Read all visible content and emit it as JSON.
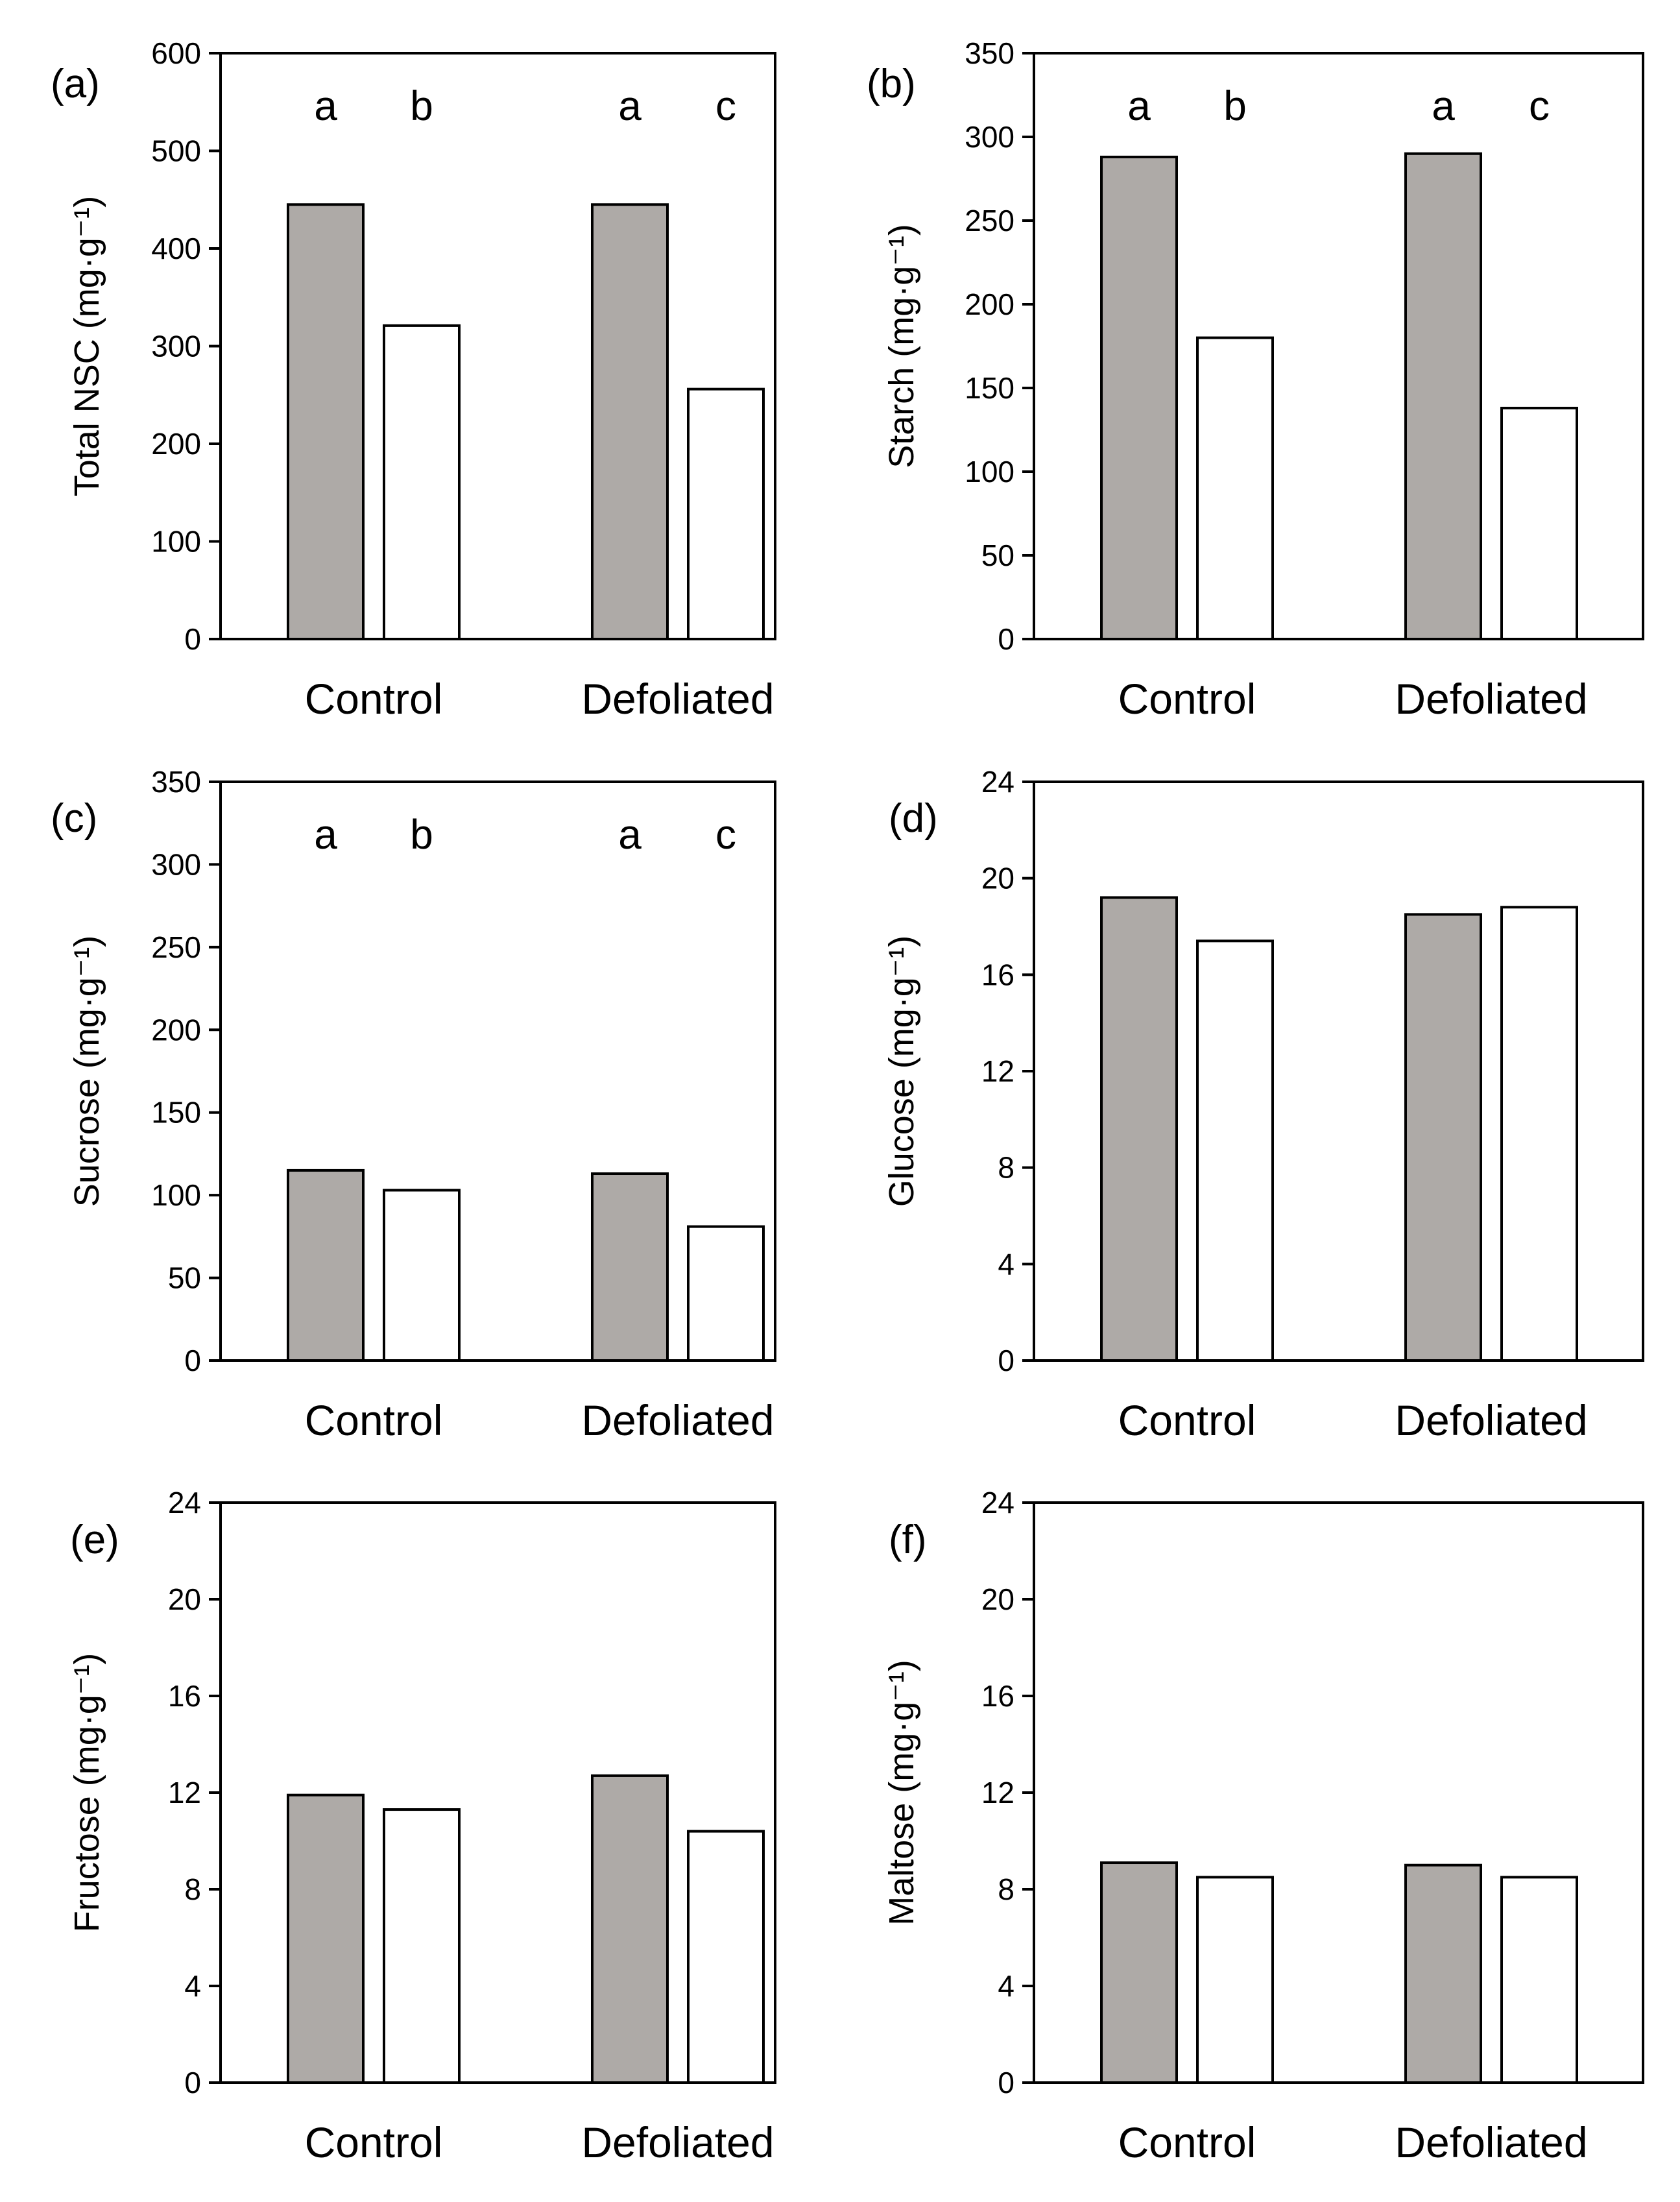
{
  "colors": {
    "series_1": "#aeaaa7",
    "series_2": "#ffffff",
    "stroke": "#000000"
  },
  "chart_data": [
    {
      "type": "bar",
      "panel": "(a)",
      "ylabel": "Total NSC (mg·g⁻¹)",
      "categories": [
        "Control",
        "Defoliated"
      ],
      "ylim": [
        0,
        600
      ],
      "yticks": [
        "0",
        "100",
        "200",
        "300",
        "400",
        "500",
        "600"
      ],
      "series": [
        {
          "values": [
            445,
            445
          ]
        },
        {
          "values": [
            321,
            256
          ]
        }
      ],
      "annotations": [
        [
          "a",
          "b"
        ],
        [
          "a",
          "c"
        ]
      ]
    },
    {
      "type": "bar",
      "panel": "(b)",
      "ylabel": "Starch (mg·g⁻¹)",
      "categories": [
        "Control",
        "Defoliated"
      ],
      "ylim": [
        0,
        350
      ],
      "yticks": [
        "0",
        "50",
        "100",
        "150",
        "200",
        "250",
        "300",
        "350"
      ],
      "series": [
        {
          "values": [
            288,
            290
          ]
        },
        {
          "values": [
            180,
            138
          ]
        }
      ],
      "annotations": [
        [
          "a",
          "b"
        ],
        [
          "a",
          "c"
        ]
      ]
    },
    {
      "type": "bar",
      "panel": "(c)",
      "ylabel": "Sucrose (mg·g⁻¹)",
      "categories": [
        "Control",
        "Defoliated"
      ],
      "ylim": [
        0,
        350
      ],
      "yticks": [
        "0",
        "50",
        "100",
        "150",
        "200",
        "250",
        "300",
        "350"
      ],
      "series": [
        {
          "values": [
            115,
            113
          ]
        },
        {
          "values": [
            103,
            81
          ]
        }
      ],
      "annotations": [
        [
          "a",
          "b"
        ],
        [
          "a",
          "c"
        ]
      ]
    },
    {
      "type": "bar",
      "panel": "(d)",
      "ylabel": "Glucose (mg·g⁻¹)",
      "categories": [
        "Control",
        "Defoliated"
      ],
      "ylim": [
        0,
        24
      ],
      "yticks": [
        "0",
        "4",
        "8",
        "12",
        "16",
        "20",
        "24"
      ],
      "series": [
        {
          "values": [
            19.2,
            18.5
          ]
        },
        {
          "values": [
            17.4,
            18.8
          ]
        }
      ]
    },
    {
      "type": "bar",
      "panel": "(e)",
      "ylabel": "Fructose (mg·g⁻¹)",
      "categories": [
        "Control",
        "Defoliated"
      ],
      "ylim": [
        0,
        24
      ],
      "yticks": [
        "0",
        "4",
        "8",
        "12",
        "16",
        "20",
        "24"
      ],
      "series": [
        {
          "values": [
            11.9,
            12.7
          ]
        },
        {
          "values": [
            11.3,
            10.4
          ]
        }
      ]
    },
    {
      "type": "bar",
      "panel": "(f)",
      "ylabel": "Maltose (mg·g⁻¹)",
      "categories": [
        "Control",
        "Defoliated"
      ],
      "ylim": [
        0,
        24
      ],
      "yticks": [
        "0",
        "4",
        "8",
        "12",
        "16",
        "20",
        "24"
      ],
      "series": [
        {
          "values": [
            9.1,
            9.0
          ]
        },
        {
          "values": [
            8.5,
            8.5
          ]
        }
      ]
    }
  ]
}
